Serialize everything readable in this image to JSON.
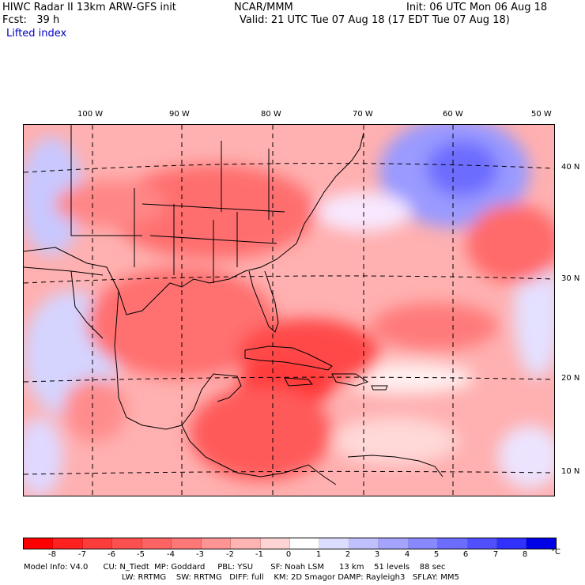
{
  "header": {
    "title_left": "HIWC Radar II 13km ARW-GFS init",
    "org": "NCAR/MMM",
    "init": "Init: 06 UTC Mon 06 Aug 18",
    "fcst": "Fcst:   39 h",
    "valid": "Valid: 21 UTC Tue 07 Aug 18 (17 EDT Tue 07 Aug 18)",
    "field": "Lifted index"
  },
  "map": {
    "lon_labels": [
      "100 W",
      "90 W",
      "80 W",
      "70 W",
      "60 W",
      "50 W"
    ],
    "lat_labels": [
      "40 N",
      "30 N",
      "20 N",
      "10 N"
    ]
  },
  "colorbar": {
    "labels": [
      "-8",
      "-7",
      "-6",
      "-5",
      "-4",
      "-3",
      "-2",
      "-1",
      "0",
      "1",
      "2",
      "3",
      "4",
      "5",
      "6",
      "7",
      "8"
    ],
    "unit": "°C",
    "colors": [
      "#ff0000",
      "#ff2020",
      "#ff3c3c",
      "#ff5050",
      "#ff6464",
      "#ff7878",
      "#ff9494",
      "#ffb4b4",
      "#ffd4d4",
      "#ffffff",
      "#dcdcff",
      "#c0c0ff",
      "#a4a4ff",
      "#8888ff",
      "#6c6cff",
      "#5050ff",
      "#3030ff",
      "#0000e6"
    ]
  },
  "footer": {
    "line1": "Model Info: V4.0      CU: N_Tiedt  MP: Goddard     PBL: YSU       SF: Noah LSM      13 km    51 levels    88 sec",
    "line2": "LW: RRTMG    SW: RRTMG   DIFF: full    KM: 2D Smagor DAMP: Rayleigh3   SFLAY: MM5"
  }
}
